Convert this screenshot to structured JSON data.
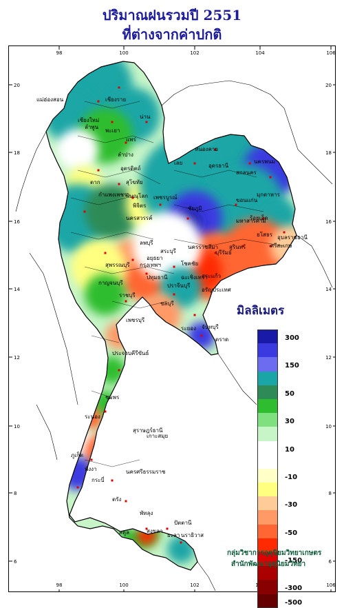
{
  "title": {
    "line1": "ปริมาณฝนรวมปี 2551",
    "line2": "ที่ต่างจากค่าปกติ"
  },
  "axes": {
    "longitude_ticks": [
      "98",
      "100",
      "102",
      "104",
      "106"
    ],
    "latitude_ticks": [
      "20",
      "18",
      "16",
      "14",
      "12",
      "10",
      "8",
      "6"
    ]
  },
  "legend": {
    "unit_label": "มิลลิเมตร",
    "entries": [
      {
        "label": "300",
        "color": "#1a1aa8"
      },
      {
        "label": "",
        "color": "#3a3ae0"
      },
      {
        "label": "150",
        "color": "#6c6cf0"
      },
      {
        "label": "",
        "color": "#1aa6a6"
      },
      {
        "label": "50",
        "color": "#2e8b57"
      },
      {
        "label": "",
        "color": "#2ebd2e"
      },
      {
        "label": "30",
        "color": "#7ee07e"
      },
      {
        "label": "",
        "color": "#c8f5c8"
      },
      {
        "label": "10",
        "color": "#ffffff"
      },
      {
        "label": "",
        "color": "#ffffff"
      },
      {
        "label": "-10",
        "color": "#ffffc8"
      },
      {
        "label": "",
        "color": "#ffff80"
      },
      {
        "label": "-30",
        "color": "#ffcc99"
      },
      {
        "label": "",
        "color": "#ff9966"
      },
      {
        "label": "-50",
        "color": "#ff6633"
      },
      {
        "label": "",
        "color": "#ff2a00"
      },
      {
        "label": "-150",
        "color": "#dd0000"
      },
      {
        "label": "",
        "color": "#aa0000"
      },
      {
        "label": "-300",
        "color": "#880000"
      },
      {
        "label": "-500",
        "color": "#660000"
      }
    ]
  },
  "provinces": [
    "เชียงราย",
    "แม่ฮ่องสอน",
    "เชียงใหม่",
    "ลำพูน",
    "พะเยา",
    "น่าน",
    "แพร่",
    "ลำปาง",
    "อุตรดิตถ์",
    "ตาก",
    "สุโขทัย",
    "พิษณุโลก",
    "กำแพงเพชร",
    "พิจิตร",
    "เพชรบูรณ์",
    "นครสวรรค์",
    "หนองคาย",
    "อุดรธานี",
    "เลย",
    "สกลนคร",
    "นครพนม",
    "มุกดาหาร",
    "ขอนแก่น",
    "ชัยภูมิ",
    "มหาสารคาม",
    "ร้อยเอ็ด",
    "ยโสธร",
    "อุบลราชธานี",
    "ศรีสะเกษ",
    "สุรินทร์",
    "บุรีรัมย์",
    "นครราชสีมา",
    "ลพบุรี",
    "สระบุรี",
    "สุพรรณบุรี",
    "อยุธยา",
    "กาญจนบุรี",
    "ปทุมธานี",
    "ราชบุรี",
    "ปราจีนบุรี",
    "ฉะเชิงเทรา",
    "สระแก้ว",
    "อรัญประเทศ",
    "ชลบุรี",
    "ระยอง",
    "จันทบุรี",
    "ตราด",
    "เพชรบุรี",
    "ประจวบคีรีขันธ์",
    "ชุมพร",
    "ระนอง",
    "สุราษฎร์ธานี",
    "เกาะสมุย",
    "ภูเก็ต",
    "พังงา",
    "กระบี่",
    "นครศรีธรรมราช",
    "ตรัง",
    "พัทลุง",
    "สงขลา",
    "สตูล",
    "ปัตตานี",
    "ยะลา",
    "นราธิวาส",
    "กรุงเทพฯ",
    "โชคชัย"
  ],
  "agency": {
    "line1": "กลุ่มวิชาการอุตุนิยมวิทยาเกษตร",
    "line2": "สำนักพัฒนาอุตุนิยมวิทยา"
  }
}
